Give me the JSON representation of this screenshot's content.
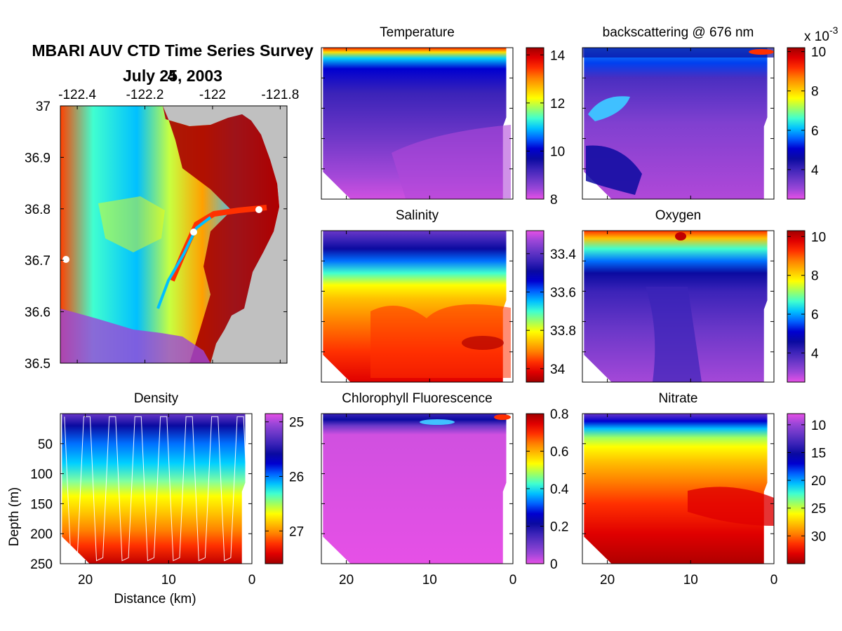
{
  "figure": {
    "title": "MBARI AUV CTD Time Series Survey",
    "date_line": "July 25, 2003",
    "date_overprint": "4"
  },
  "colors": {
    "jet": [
      "#e650e6",
      "#9b46d8",
      "#6a37c8",
      "#3b23b8",
      "#0a0aa0",
      "#0000d0",
      "#0060ff",
      "#00c0ff",
      "#40ffd0",
      "#a0ff60",
      "#ffff00",
      "#ffc000",
      "#ff8000",
      "#ff3000",
      "#e00000",
      "#a00000"
    ],
    "land_gray": "#c0c0c0",
    "density_contour": "#ffffff"
  },
  "chart_data": [
    {
      "id": "map",
      "type": "heatmap",
      "title": "",
      "x_ticks": [
        "-122.4",
        "-122.2",
        "-122",
        "-121.8"
      ],
      "y_ticks": [
        "37",
        "36.9",
        "36.8",
        "36.7",
        "36.6",
        "36.5"
      ],
      "xlim": [
        -122.45,
        -121.78
      ],
      "ylim": [
        36.5,
        37.0
      ],
      "stations": [
        {
          "lon": -122.42,
          "lat": 36.7
        },
        {
          "lon": -122.02,
          "lat": 36.755
        },
        {
          "lon": -121.83,
          "lat": 36.795
        }
      ]
    },
    {
      "id": "temperature",
      "type": "heatmap",
      "title": "Temperature",
      "xlim": [
        23,
        0
      ],
      "ylim": [
        250,
        0
      ],
      "colorbar": {
        "ticks": [
          "14",
          "12",
          "10",
          "8"
        ],
        "values": [
          14,
          12,
          10,
          8
        ],
        "range": [
          8,
          14.3
        ],
        "reverse": false,
        "multiplier": ""
      }
    },
    {
      "id": "backscattering",
      "type": "heatmap",
      "title": "backscattering @ 676 nm",
      "xlim": [
        23,
        0
      ],
      "ylim": [
        250,
        0
      ],
      "colorbar": {
        "ticks": [
          "10",
          "8",
          "6",
          "4"
        ],
        "values": [
          10,
          8,
          6,
          4
        ],
        "range": [
          2.5,
          10.2
        ],
        "reverse": false,
        "multiplier": "x 10",
        "exponent": "-3"
      }
    },
    {
      "id": "salinity",
      "type": "heatmap",
      "title": "Salinity",
      "xlim": [
        23,
        0
      ],
      "ylim": [
        250,
        0
      ],
      "colorbar": {
        "ticks": [
          "33.4",
          "33.6",
          "33.8",
          "34"
        ],
        "values": [
          33.4,
          33.6,
          33.8,
          34.0
        ],
        "range": [
          33.28,
          34.07
        ],
        "reverse": true,
        "multiplier": ""
      }
    },
    {
      "id": "oxygen",
      "type": "heatmap",
      "title": "Oxygen",
      "xlim": [
        23,
        0
      ],
      "ylim": [
        250,
        0
      ],
      "colorbar": {
        "ticks": [
          "10",
          "8",
          "6",
          "4"
        ],
        "values": [
          10,
          8,
          6,
          4
        ],
        "range": [
          2.5,
          10.3
        ],
        "reverse": false,
        "multiplier": ""
      }
    },
    {
      "id": "density",
      "type": "heatmap",
      "title": "Density",
      "xlabel": "Distance (km)",
      "ylabel": "Depth (m)",
      "x_ticks": [
        "20",
        "10",
        "0"
      ],
      "x_values": [
        20,
        10,
        0
      ],
      "y_ticks": [
        "50",
        "100",
        "150",
        "200",
        "250"
      ],
      "y_values": [
        50,
        100,
        150,
        200,
        250
      ],
      "xlim": [
        23,
        0
      ],
      "ylim": [
        250,
        0
      ],
      "colorbar": {
        "ticks": [
          "25",
          "26",
          "27"
        ],
        "values": [
          25,
          26,
          27
        ],
        "range": [
          24.85,
          27.6
        ],
        "reverse": true,
        "multiplier": ""
      }
    },
    {
      "id": "chlorophyll",
      "type": "heatmap",
      "title": "Chlorophyll Fluorescence",
      "x_ticks": [
        "20",
        "10",
        "0"
      ],
      "x_values": [
        20,
        10,
        0
      ],
      "xlim": [
        23,
        0
      ],
      "ylim": [
        250,
        0
      ],
      "colorbar": {
        "ticks": [
          "0.8",
          "0.6",
          "0.4",
          "0.2",
          "0"
        ],
        "values": [
          0.8,
          0.6,
          0.4,
          0.2,
          0
        ],
        "range": [
          0,
          0.8
        ],
        "reverse": false,
        "multiplier": ""
      }
    },
    {
      "id": "nitrate",
      "type": "heatmap",
      "title": "Nitrate",
      "x_ticks": [
        "20",
        "10",
        "0"
      ],
      "x_values": [
        20,
        10,
        0
      ],
      "xlim": [
        23,
        0
      ],
      "ylim": [
        250,
        0
      ],
      "colorbar": {
        "ticks": [
          "10",
          "15",
          "20",
          "25",
          "30"
        ],
        "values": [
          10,
          15,
          20,
          25,
          30
        ],
        "range": [
          8,
          35
        ],
        "reverse": true,
        "multiplier": ""
      }
    }
  ]
}
